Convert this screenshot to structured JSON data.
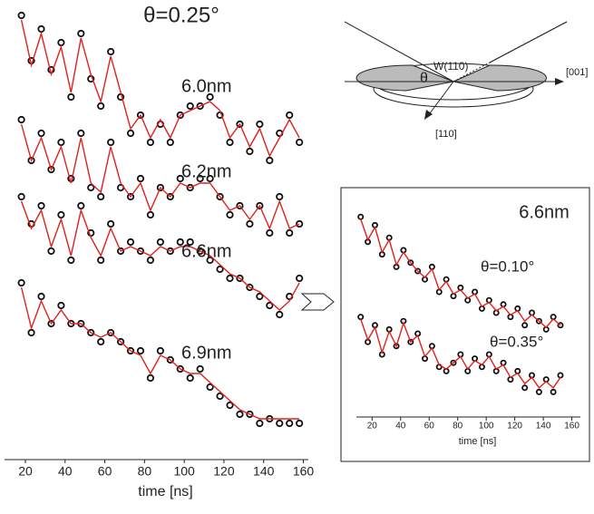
{
  "chart_data": [
    {
      "type": "line",
      "title": "θ=0.25°",
      "xlabel": "time [ns]",
      "xlim": [
        9.5,
        162.5
      ],
      "ylim": [
        0,
        100
      ],
      "xticks": [
        20,
        40,
        60,
        80,
        100,
        120,
        140,
        160
      ],
      "x": [
        18,
        23,
        28,
        33,
        38,
        43,
        48,
        53,
        58,
        63,
        68,
        73,
        78,
        83,
        88,
        93,
        98,
        103,
        108,
        113,
        118,
        123,
        128,
        133,
        138,
        143,
        148,
        153,
        158
      ],
      "series": [
        {
          "name": "6.0nm",
          "color": "#e0201c",
          "values": [
            98,
            88,
            95,
            86,
            92,
            80,
            94,
            84,
            78,
            90,
            80,
            72,
            76,
            70,
            74,
            70,
            76,
            78,
            78,
            80,
            76,
            70,
            74,
            68,
            74,
            66,
            72,
            76,
            70
          ],
          "fit": [
            97,
            87,
            94,
            85,
            91,
            81,
            93,
            85,
            79,
            89,
            81,
            73,
            76,
            71,
            75,
            71,
            76,
            77,
            78,
            79,
            77,
            71,
            74,
            69,
            73,
            67,
            71,
            75,
            71
          ]
        },
        {
          "name": "6.2nm",
          "color": "#e0201c",
          "values": [
            75,
            66,
            72,
            64,
            70,
            62,
            72,
            60,
            58,
            70,
            60,
            58,
            62,
            54,
            60,
            58,
            62,
            60,
            62,
            62,
            58,
            54,
            56,
            52,
            56,
            50,
            58,
            50,
            52
          ],
          "fit": [
            74,
            66,
            71,
            64,
            69,
            61,
            71,
            61,
            59,
            69,
            61,
            58,
            61,
            55,
            60,
            58,
            61,
            60,
            61,
            61,
            58,
            55,
            56,
            53,
            56,
            51,
            57,
            51,
            52
          ]
        },
        {
          "name": "6.6nm",
          "color": "#e0201c",
          "values": [
            58,
            52,
            56,
            46,
            54,
            44,
            56,
            50,
            44,
            52,
            46,
            48,
            46,
            44,
            48,
            46,
            48,
            48,
            46,
            44,
            42,
            40,
            40,
            38,
            36,
            34,
            32,
            36,
            40
          ],
          "fit": [
            57,
            51,
            55,
            47,
            53,
            45,
            55,
            49,
            45,
            51,
            46,
            47,
            46,
            45,
            47,
            46,
            47,
            47,
            46,
            45,
            43,
            41,
            40,
            38,
            37,
            35,
            33,
            35,
            39
          ]
        },
        {
          "name": "6.9nm",
          "color": "#e0201c",
          "values": [
            39,
            28,
            36,
            30,
            34,
            30,
            30,
            28,
            26,
            28,
            26,
            24,
            24,
            18,
            24,
            22,
            20,
            18,
            20,
            16,
            14,
            12,
            10,
            10,
            8,
            9,
            8,
            8,
            8
          ],
          "fit": [
            38,
            29,
            35,
            30,
            33,
            30,
            30,
            28,
            27,
            28,
            26,
            24,
            23,
            19,
            23,
            22,
            20,
            19,
            19,
            17,
            15,
            13,
            11,
            10,
            9,
            9,
            9,
            9,
            9
          ]
        }
      ]
    },
    {
      "type": "line",
      "title": "6.6nm",
      "xlabel": "time [ns]",
      "xlim": [
        9,
        166
      ],
      "ylim": [
        0,
        100
      ],
      "xticks": [
        20,
        40,
        60,
        80,
        100,
        120,
        140,
        160
      ],
      "x": [
        12,
        17,
        22,
        27,
        32,
        37,
        42,
        47,
        52,
        57,
        62,
        67,
        72,
        77,
        82,
        87,
        92,
        97,
        102,
        107,
        112,
        117,
        122,
        127,
        132,
        137,
        142,
        147,
        152
      ],
      "series": [
        {
          "name": "θ=0.10°",
          "color": "#e0201c",
          "values": [
            96,
            84,
            92,
            78,
            86,
            72,
            80,
            74,
            70,
            66,
            72,
            60,
            66,
            58,
            62,
            56,
            60,
            52,
            56,
            50,
            54,
            48,
            52,
            44,
            50,
            46,
            42,
            48,
            44
          ],
          "fit": [
            95,
            85,
            91,
            79,
            85,
            73,
            79,
            74,
            70,
            67,
            71,
            61,
            65,
            59,
            61,
            57,
            59,
            53,
            55,
            51,
            53,
            49,
            51,
            46,
            49,
            46,
            43,
            47,
            44
          ]
        },
        {
          "name": "θ=0.35°",
          "color": "#e0201c",
          "values": [
            48,
            36,
            44,
            30,
            42,
            34,
            46,
            36,
            40,
            28,
            34,
            24,
            22,
            26,
            30,
            22,
            28,
            24,
            30,
            22,
            26,
            18,
            22,
            14,
            20,
            12,
            18,
            12,
            20
          ],
          "fit": [
            47,
            37,
            43,
            31,
            41,
            34,
            45,
            36,
            39,
            29,
            33,
            25,
            23,
            26,
            29,
            23,
            27,
            25,
            29,
            23,
            25,
            19,
            21,
            16,
            19,
            14,
            17,
            14,
            19
          ]
        }
      ]
    }
  ],
  "diagram": {
    "angle": "θ",
    "surface": "W(110)",
    "axis_a": "[001]",
    "axis_b": "[110]"
  }
}
